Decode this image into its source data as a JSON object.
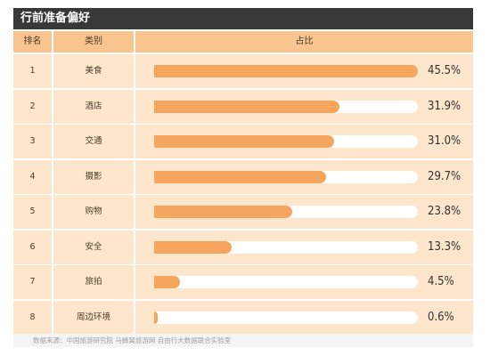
{
  "title": "行前准备偏好",
  "headers": {
    "rank": "排名",
    "category": "类别",
    "share": "占比"
  },
  "source": "数据来源：中国旅游研究院 马蜂窝旅游网 自由行大数据联合实验室",
  "colors": {
    "title_bg": "#383838",
    "header_bg": "#f9c48e",
    "row_bg": "#fde6cb",
    "bar": "#f6a55f",
    "track": "#ffffff"
  },
  "chart_data": {
    "type": "bar",
    "orientation": "horizontal",
    "ranks": [
      "1",
      "2",
      "3",
      "4",
      "5",
      "6",
      "7",
      "8"
    ],
    "categories": [
      "美食",
      "酒店",
      "交通",
      "摄影",
      "购物",
      "安全",
      "旅拍",
      "周边环境"
    ],
    "values": [
      45.5,
      31.9,
      31.0,
      29.7,
      23.8,
      13.3,
      4.5,
      0.6
    ],
    "value_labels": [
      "45.5%",
      "31.9%",
      "31.0%",
      "29.7%",
      "23.8%",
      "13.3%",
      "4.5%",
      "0.6%"
    ],
    "xlim": [
      0,
      45.5
    ],
    "unit": "%"
  }
}
